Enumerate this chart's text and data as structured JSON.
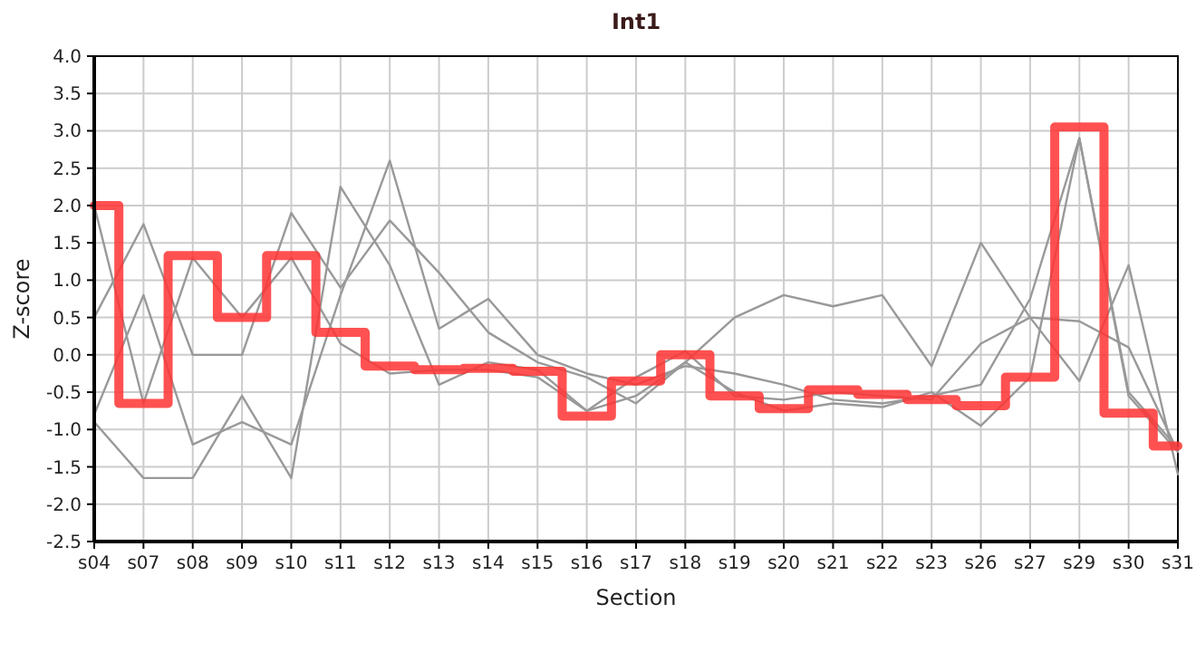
{
  "chart_data": {
    "type": "line",
    "title": "Int1",
    "xlabel": "Section",
    "ylabel": "Z-score",
    "grid": true,
    "marker": "none",
    "categories": [
      "s04",
      "s07",
      "s08",
      "s09",
      "s10",
      "s11",
      "s12",
      "s13",
      "s14",
      "s15",
      "s16",
      "s17",
      "s18",
      "s19",
      "s20",
      "s21",
      "s22",
      "s23",
      "s26",
      "s27",
      "s29",
      "s30",
      "s31"
    ],
    "ylim": [
      -2.5,
      4
    ],
    "yticks": [
      {
        "value": -2.5,
        "label": "-2.5"
      },
      {
        "value": -2,
        "label": "-2.0"
      },
      {
        "value": -1.5,
        "label": "-1.5"
      },
      {
        "value": -1,
        "label": "-1.0"
      },
      {
        "value": -0.5,
        "label": "-0.5"
      },
      {
        "value": 0,
        "label": "0.0"
      },
      {
        "value": 0.5,
        "label": "0.5"
      },
      {
        "value": 1,
        "label": "1.0"
      },
      {
        "value": 1.5,
        "label": "1.5"
      },
      {
        "value": 2,
        "label": "2.0"
      },
      {
        "value": 2.5,
        "label": "2.5"
      },
      {
        "value": 3,
        "label": "3.0"
      },
      {
        "value": 3.5,
        "label": "3.5"
      },
      {
        "value": 4,
        "label": "4.0"
      }
    ],
    "series": [
      {
        "color": "#999999",
        "values": [
          0.5,
          1.75,
          0.0,
          0.0,
          1.9,
          0.9,
          1.8,
          1.1,
          0.3,
          -0.1,
          -0.3,
          -0.65,
          -0.1,
          0.5,
          0.8,
          0.65,
          0.8,
          -0.15,
          1.5,
          0.5,
          0.45,
          0.1,
          -1.3
        ]
      },
      {
        "color": "#999999",
        "values": [
          -0.8,
          0.8,
          -1.2,
          -0.9,
          -1.2,
          0.8,
          2.6,
          0.35,
          0.75,
          0.0,
          -0.25,
          -0.4,
          -0.15,
          -0.25,
          -0.4,
          -0.6,
          -0.65,
          -0.55,
          -0.4,
          0.75,
          2.9,
          -0.5,
          -1.25
        ]
      },
      {
        "color": "#999999",
        "values": [
          -0.9,
          -1.65,
          -1.65,
          -0.55,
          -1.65,
          2.25,
          1.2,
          -0.4,
          -0.1,
          -0.2,
          -0.75,
          -0.55,
          -0.1,
          -0.5,
          -0.75,
          -0.65,
          -0.7,
          -0.5,
          -0.95,
          -0.3,
          2.9,
          -0.55,
          -1.3
        ]
      },
      {
        "color": "#999999",
        "values": [
          2.0,
          -0.65,
          1.3,
          0.5,
          1.3,
          0.15,
          -0.25,
          -0.2,
          -0.2,
          -0.3,
          -0.75,
          -0.3,
          0.05,
          -0.55,
          -0.6,
          -0.5,
          -0.55,
          -0.6,
          0.15,
          0.5,
          -0.35,
          1.2,
          -1.6
        ]
      },
      {
        "type": "step",
        "color": "#ff3333",
        "values": [
          2.0,
          -0.65,
          1.33,
          0.5,
          1.33,
          0.3,
          -0.15,
          -0.2,
          -0.18,
          -0.22,
          -0.82,
          -0.35,
          0.0,
          -0.55,
          -0.72,
          -0.47,
          -0.53,
          -0.6,
          -0.68,
          -0.3,
          3.05,
          -0.78,
          -1.22
        ]
      }
    ]
  }
}
